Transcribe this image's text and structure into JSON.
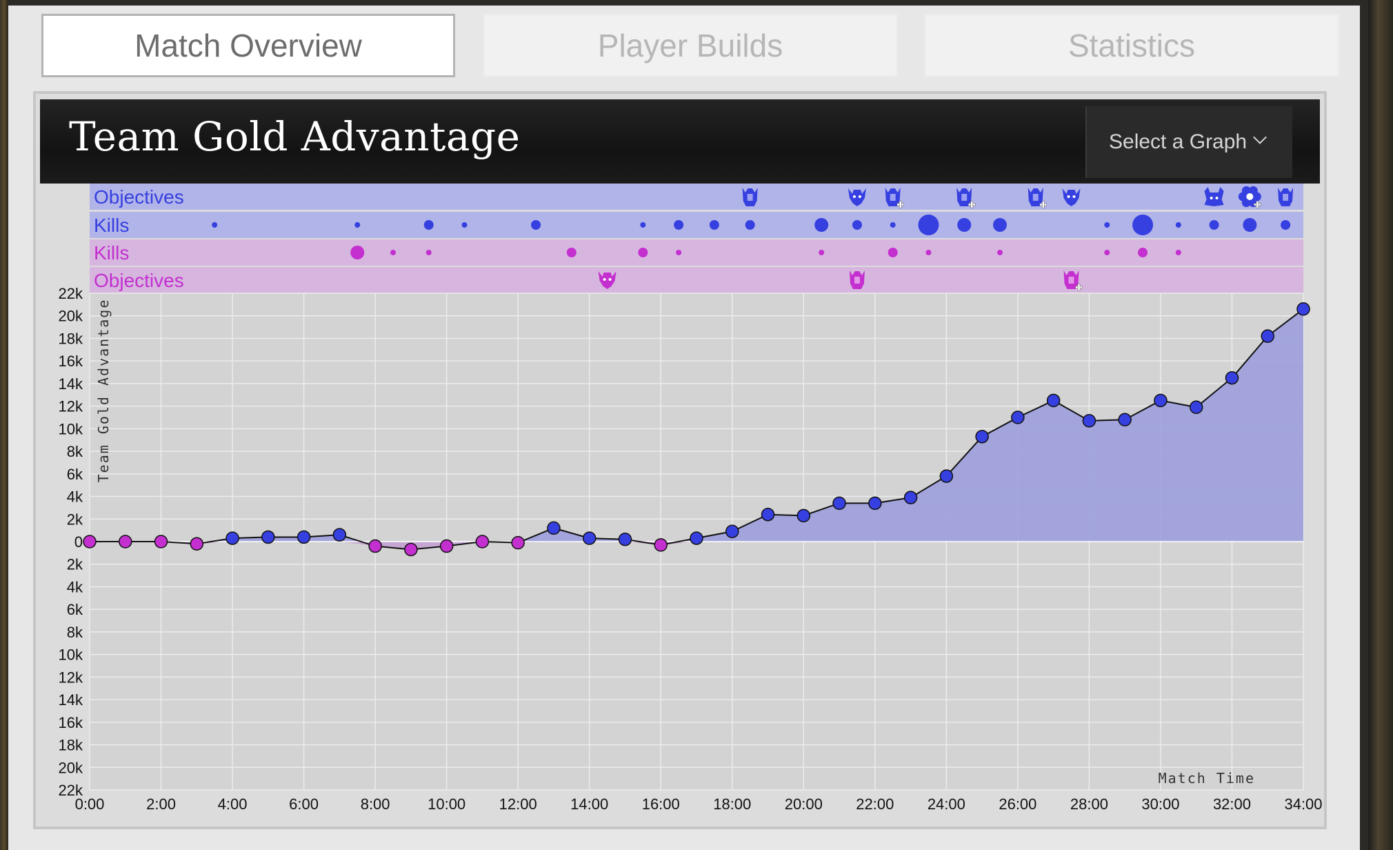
{
  "tabs": [
    {
      "label": "Match Overview",
      "active": true
    },
    {
      "label": "Player Builds",
      "active": false
    },
    {
      "label": "Statistics",
      "active": false
    }
  ],
  "chart_header": {
    "title": "Team Gold Advantage",
    "select_label": "Select a Graph"
  },
  "colors": {
    "blue": "#3640e0",
    "purple": "#c42fd0",
    "blue_band": "#b1b4e8",
    "purple_band": "#d6b6de",
    "area": "#9c9fdc",
    "plot_bg": "#d3d3d3"
  },
  "lanes": [
    {
      "label": "Objectives",
      "team": "blue"
    },
    {
      "label": "Kills",
      "team": "blue"
    },
    {
      "label": "Kills",
      "team": "purple"
    },
    {
      "label": "Objectives",
      "team": "purple"
    }
  ],
  "chart_data": {
    "type": "line",
    "ylabel": "Team Gold Advantage",
    "xlabel": "Match Time",
    "ylim": [
      -22000,
      22000
    ],
    "xlim": [
      0,
      34
    ],
    "x_ticks": [
      "0:00",
      "2:00",
      "4:00",
      "6:00",
      "8:00",
      "10:00",
      "12:00",
      "14:00",
      "16:00",
      "18:00",
      "20:00",
      "22:00",
      "24:00",
      "26:00",
      "28:00",
      "30:00",
      "32:00",
      "34:00"
    ],
    "y_ticks": [
      "22k",
      "20k",
      "18k",
      "16k",
      "14k",
      "12k",
      "10k",
      "8k",
      "6k",
      "4k",
      "2k",
      "0",
      "2k",
      "4k",
      "6k",
      "8k",
      "10k",
      "12k",
      "14k",
      "16k",
      "18k",
      "20k",
      "22k"
    ],
    "points": [
      {
        "x": 0,
        "y": 0
      },
      {
        "x": 1,
        "y": 0
      },
      {
        "x": 2,
        "y": 0
      },
      {
        "x": 3,
        "y": -200
      },
      {
        "x": 4,
        "y": 300
      },
      {
        "x": 5,
        "y": 400
      },
      {
        "x": 6,
        "y": 400
      },
      {
        "x": 7,
        "y": 600
      },
      {
        "x": 8,
        "y": -400
      },
      {
        "x": 9,
        "y": -700
      },
      {
        "x": 10,
        "y": -400
      },
      {
        "x": 11,
        "y": 0
      },
      {
        "x": 12,
        "y": -100
      },
      {
        "x": 13,
        "y": 1200
      },
      {
        "x": 14,
        "y": 300
      },
      {
        "x": 15,
        "y": 200
      },
      {
        "x": 16,
        "y": -300
      },
      {
        "x": 17,
        "y": 300
      },
      {
        "x": 18,
        "y": 900
      },
      {
        "x": 19,
        "y": 2400
      },
      {
        "x": 20,
        "y": 2300
      },
      {
        "x": 21,
        "y": 3400
      },
      {
        "x": 22,
        "y": 3400
      },
      {
        "x": 23,
        "y": 3900
      },
      {
        "x": 24,
        "y": 5800
      },
      {
        "x": 25,
        "y": 9300
      },
      {
        "x": 26,
        "y": 11000
      },
      {
        "x": 27,
        "y": 12500
      },
      {
        "x": 28,
        "y": 10700
      },
      {
        "x": 29,
        "y": 10800
      },
      {
        "x": 30,
        "y": 12500
      },
      {
        "x": 31,
        "y": 11900
      },
      {
        "x": 32,
        "y": 14500
      },
      {
        "x": 33,
        "y": 18200
      },
      {
        "x": 34,
        "y": 20600
      }
    ],
    "blue_kills": [
      {
        "t": 3.5,
        "size": 1
      },
      {
        "t": 7.5,
        "size": 1
      },
      {
        "t": 9.5,
        "size": 2
      },
      {
        "t": 10.5,
        "size": 1
      },
      {
        "t": 12.5,
        "size": 2
      },
      {
        "t": 15.5,
        "size": 1
      },
      {
        "t": 16.5,
        "size": 2
      },
      {
        "t": 17.5,
        "size": 2
      },
      {
        "t": 18.5,
        "size": 2
      },
      {
        "t": 20.5,
        "size": 3
      },
      {
        "t": 21.5,
        "size": 2
      },
      {
        "t": 22.5,
        "size": 1
      },
      {
        "t": 23.5,
        "size": 4
      },
      {
        "t": 24.5,
        "size": 3
      },
      {
        "t": 25.5,
        "size": 3
      },
      {
        "t": 28.5,
        "size": 1
      },
      {
        "t": 29.5,
        "size": 4
      },
      {
        "t": 30.5,
        "size": 1
      },
      {
        "t": 31.5,
        "size": 2
      },
      {
        "t": 32.5,
        "size": 3
      },
      {
        "t": 33.5,
        "size": 2
      }
    ],
    "purple_kills": [
      {
        "t": 7.5,
        "size": 3
      },
      {
        "t": 8.5,
        "size": 1
      },
      {
        "t": 9.5,
        "size": 1
      },
      {
        "t": 13.5,
        "size": 2
      },
      {
        "t": 15.5,
        "size": 2
      },
      {
        "t": 16.5,
        "size": 1
      },
      {
        "t": 20.5,
        "size": 1
      },
      {
        "t": 22.5,
        "size": 2
      },
      {
        "t": 23.5,
        "size": 1
      },
      {
        "t": 25.5,
        "size": 1
      },
      {
        "t": 28.5,
        "size": 1
      },
      {
        "t": 29.5,
        "size": 2
      },
      {
        "t": 30.5,
        "size": 1
      }
    ],
    "blue_objectives": [
      {
        "t": 18.5,
        "icon": "mercenary-icon",
        "plus": false
      },
      {
        "t": 21.5,
        "icon": "boss-icon",
        "plus": false
      },
      {
        "t": 22.5,
        "icon": "mercenary-icon",
        "plus": true
      },
      {
        "t": 24.5,
        "icon": "mercenary-icon",
        "plus": true
      },
      {
        "t": 26.5,
        "icon": "mercenary-icon",
        "plus": true
      },
      {
        "t": 27.5,
        "icon": "boss-icon",
        "plus": false
      },
      {
        "t": 31.5,
        "icon": "crab-boss-icon",
        "plus": false
      },
      {
        "t": 32.5,
        "icon": "flower-objective-icon",
        "plus": true
      },
      {
        "t": 33.5,
        "icon": "mercenary-icon",
        "plus": false
      }
    ],
    "purple_objectives": [
      {
        "t": 14.5,
        "icon": "boss-icon",
        "plus": false
      },
      {
        "t": 21.5,
        "icon": "mercenary-icon",
        "plus": false
      },
      {
        "t": 27.5,
        "icon": "mercenary-icon",
        "plus": true
      }
    ]
  }
}
